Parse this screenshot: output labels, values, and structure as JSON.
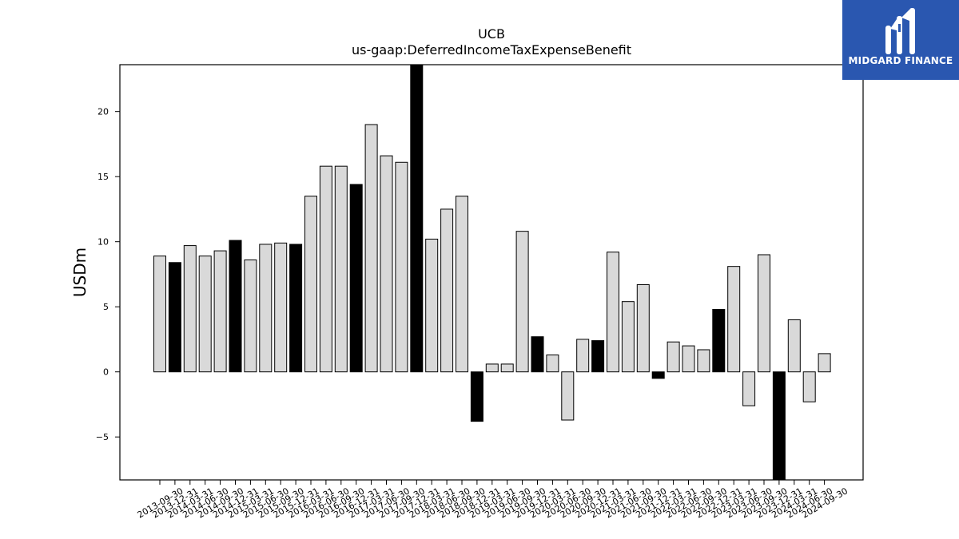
{
  "chart_data": {
    "type": "bar",
    "title": "UCB",
    "subtitle": "us-gaap:DeferredIncomeTaxExpenseBenefit",
    "xlabel": "",
    "ylabel": "USDm",
    "ylim": [
      -8.3,
      23.6
    ],
    "yticks": [
      -5,
      0,
      5,
      10,
      15,
      20
    ],
    "ytick_labels": [
      "−5",
      "0",
      "5",
      "10",
      "15",
      "20"
    ],
    "grid": false,
    "legend": "none",
    "colors": {
      "quarterly": "#d9d9d9",
      "annual": "#000000",
      "edge": "#000000"
    },
    "categories": [
      "2013-09-30",
      "2013-12-31",
      "2014-03-31",
      "2014-06-30",
      "2014-09-30",
      "2014-12-31",
      "2015-03-31",
      "2015-06-30",
      "2015-09-30",
      "2015-12-31",
      "2016-03-31",
      "2016-06-30",
      "2016-09-30",
      "2016-12-31",
      "2017-03-31",
      "2017-06-30",
      "2017-09-30",
      "2017-12-31",
      "2018-03-31",
      "2018-06-30",
      "2018-09-30",
      "2018-12-31",
      "2019-03-31",
      "2019-06-30",
      "2019-09-30",
      "2019-12-31",
      "2020-03-31",
      "2020-06-30",
      "2020-09-30",
      "2020-12-31",
      "2021-03-31",
      "2021-06-30",
      "2021-09-30",
      "2021-12-31",
      "2022-03-31",
      "2022-06-30",
      "2022-09-30",
      "2022-12-31",
      "2023-03-31",
      "2023-06-30",
      "2023-09-30",
      "2023-12-31",
      "2024-03-31",
      "2024-06-30",
      "2024-09-30"
    ],
    "values": [
      8.9,
      8.4,
      9.7,
      8.9,
      9.3,
      10.1,
      8.6,
      9.8,
      9.9,
      9.8,
      13.5,
      15.8,
      15.8,
      14.4,
      19.0,
      16.6,
      16.1,
      23.6,
      10.2,
      12.5,
      13.5,
      -3.8,
      0.6,
      0.6,
      10.8,
      2.7,
      1.3,
      -3.7,
      2.5,
      2.4,
      9.2,
      5.4,
      6.7,
      -0.5,
      2.3,
      2.0,
      1.7,
      4.8,
      8.1,
      -2.6,
      9.0,
      -8.3,
      4.0,
      -2.3,
      1.4
    ],
    "annual": [
      false,
      true,
      false,
      false,
      false,
      true,
      false,
      false,
      false,
      true,
      false,
      false,
      false,
      true,
      false,
      false,
      false,
      true,
      false,
      false,
      false,
      true,
      false,
      false,
      false,
      true,
      false,
      false,
      false,
      true,
      false,
      false,
      false,
      true,
      false,
      false,
      false,
      true,
      false,
      false,
      false,
      true,
      false,
      false,
      false
    ]
  },
  "logo": {
    "text": "MIDGARD FINANCE",
    "background": "#2a57b0"
  }
}
